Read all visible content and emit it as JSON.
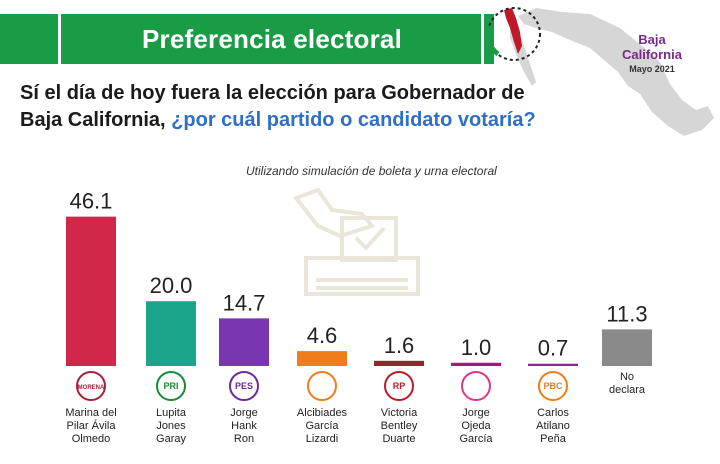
{
  "header": {
    "title": "Preferencia electoral",
    "region_line1": "Baja",
    "region_line2": "California",
    "date": "Mayo 2021"
  },
  "question": {
    "part1": "Sí el día de hoy fuera la elección para Gobernador de Baja California,",
    "part2": "¿por cuál partido o candidato votaría?"
  },
  "subtitle": "Utilizando simulación de boleta y urna electoral",
  "chart_data": {
    "type": "bar",
    "categories": [
      "Marina del Pilar Ávila Olmedo",
      "Lupita Jones Garay",
      "Jorge Hank Ron",
      "Alcibiades García Lizardi",
      "Victoria Bentley Duarte",
      "Jorge Ojeda García",
      "Carlos Atilano Peña",
      "No declara"
    ],
    "category_lines": [
      [
        "Marina del",
        "Pilar Ávila",
        "Olmedo"
      ],
      [
        "Lupita",
        "Jones",
        "Garay"
      ],
      [
        "Jorge",
        "Hank",
        "Ron"
      ],
      [
        "Alcibiades",
        "García",
        "Lizardi"
      ],
      [
        "Victoria",
        "Bentley",
        "Duarte"
      ],
      [
        "Jorge",
        "Ojeda",
        "García"
      ],
      [
        "Carlos",
        "Atilano",
        "Peña"
      ],
      [
        "No",
        "declara"
      ]
    ],
    "values": [
      46.1,
      20.0,
      14.7,
      4.6,
      1.6,
      1.0,
      0.7,
      11.3
    ],
    "value_labels": [
      "46.1",
      "20.0",
      "14.7",
      "4.6",
      "1.6",
      "1.0",
      "0.7",
      "11.3"
    ],
    "colors": [
      "#d1284a",
      "#1aa58a",
      "#7a35b0",
      "#ef7d1a",
      "#8b2a2a",
      "#a8177a",
      "#8a2a8a",
      "#8a8a8a"
    ],
    "party_logos": [
      {
        "icon": "morena-pt-pvem-logo",
        "text": "MORENA",
        "color": "#a8203a"
      },
      {
        "icon": "pri-pan-prd-logo",
        "text": "PRI",
        "color": "#1a8a3a"
      },
      {
        "icon": "pes-logo",
        "text": "PES",
        "color": "#6a2a9a"
      },
      {
        "icon": "movimiento-ciudadano-logo",
        "text": "",
        "color": "#ef7d1a"
      },
      {
        "icon": "rp-logo",
        "text": "RP",
        "color": "#c01a2a"
      },
      {
        "icon": "fuerza-mexico-logo",
        "text": "",
        "color": "#e0368a"
      },
      {
        "icon": "pbc-logo",
        "text": "PBC",
        "color": "#ef7d1a"
      },
      {
        "icon": "",
        "text": "",
        "color": ""
      }
    ],
    "ylim": [
      0,
      50
    ]
  }
}
